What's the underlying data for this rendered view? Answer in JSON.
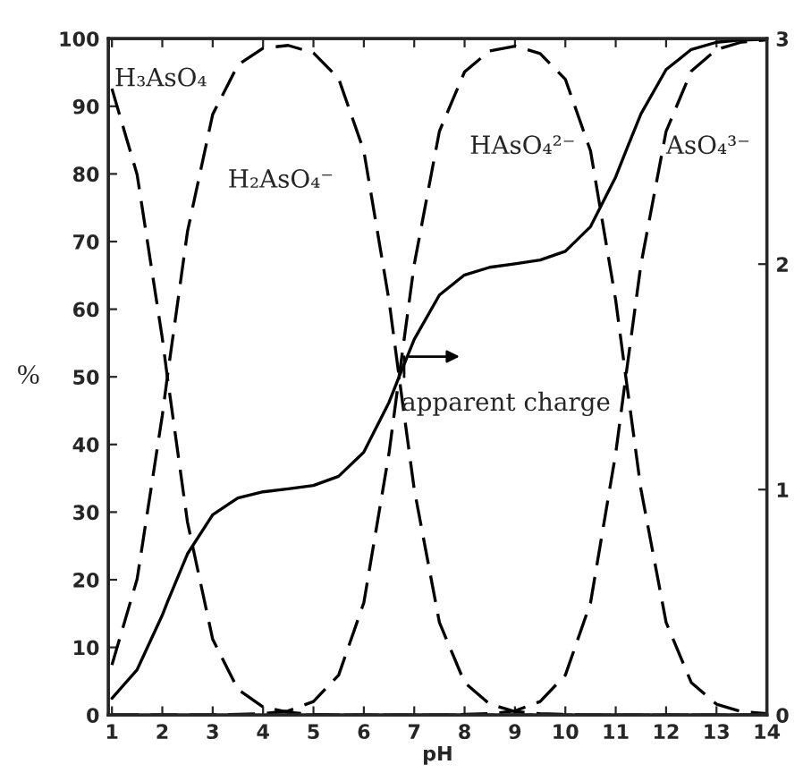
{
  "chart_data": {
    "type": "line",
    "xlabel": "pH",
    "ylabel": "%",
    "x": [
      1,
      1.5,
      2,
      2.1,
      2.5,
      3,
      3.5,
      4,
      4.5,
      5,
      5.5,
      6,
      6.5,
      6.7,
      7,
      7.5,
      8,
      8.5,
      9,
      9.5,
      10,
      10.5,
      11,
      11.2,
      11.5,
      12,
      12.5,
      13,
      13.5,
      14
    ],
    "series": [
      {
        "name": "H₃AsO₄",
        "color": "#000000",
        "line_style": "dashed",
        "values": [
          92.6,
          79.9,
          55.7,
          50,
          28.5,
          11.2,
          3.8,
          1.2,
          0.4,
          0.1,
          0,
          0,
          0,
          0,
          0,
          0,
          0,
          0,
          0,
          0,
          0,
          0,
          0,
          0,
          0,
          0,
          0,
          0,
          0,
          0
        ]
      },
      {
        "name": "H₂AsO₄⁻",
        "color": "#000000",
        "line_style": "dashed",
        "values": [
          7.4,
          20.1,
          44.3,
          50,
          71.5,
          88.8,
          96.1,
          98.6,
          99.0,
          97.9,
          94.1,
          83.4,
          61.3,
          50,
          33.4,
          13.7,
          4.8,
          1.6,
          0.5,
          0.2,
          0.1,
          0,
          0,
          0,
          0,
          0,
          0,
          0,
          0,
          0
        ]
      },
      {
        "name": "HAsO₄²⁻",
        "color": "#000000",
        "line_style": "dashed",
        "values": [
          0,
          0,
          0,
          0,
          0,
          0,
          0.1,
          0.2,
          0.6,
          2.0,
          5.9,
          16.6,
          38.7,
          50,
          66.6,
          86.3,
          95.1,
          98.2,
          98.9,
          97.8,
          94.0,
          83.4,
          61.3,
          50,
          33.4,
          13.7,
          4.8,
          1.6,
          0.5,
          0.2
        ]
      },
      {
        "name": "AsO₄³⁻",
        "color": "#000000",
        "line_style": "dashed",
        "values": [
          0,
          0,
          0,
          0,
          0,
          0,
          0,
          0,
          0,
          0,
          0,
          0,
          0,
          0,
          0,
          0,
          0.1,
          0.2,
          0.6,
          2.0,
          5.9,
          16.6,
          38.7,
          50,
          66.6,
          86.3,
          95.2,
          98.4,
          99.5,
          99.8
        ]
      },
      {
        "name": "apparent charge",
        "color": "#000000",
        "line_style": "solid",
        "axis": "y2",
        "values": [
          0.074,
          0.201,
          0.443,
          0.5,
          0.715,
          0.888,
          0.963,
          0.99,
          1.003,
          1.018,
          1.059,
          1.166,
          1.387,
          1.5,
          1.666,
          1.863,
          1.952,
          1.986,
          2.001,
          2.018,
          2.057,
          2.166,
          2.387,
          2.5,
          2.666,
          2.863,
          2.952,
          2.984,
          2.994,
          2.997
        ]
      }
    ],
    "xlim": [
      0.93,
      14
    ],
    "xticks": [
      1,
      2,
      3,
      4,
      5,
      6,
      7,
      8,
      9,
      10,
      11,
      12,
      13,
      14
    ],
    "ylim": [
      0,
      100
    ],
    "yticks": [
      0,
      10,
      20,
      30,
      40,
      50,
      60,
      70,
      80,
      90,
      100
    ],
    "y2lim": [
      0,
      3
    ],
    "y2ticks": [
      0,
      1,
      2,
      3
    ],
    "grid": false,
    "marker": "none"
  }
}
